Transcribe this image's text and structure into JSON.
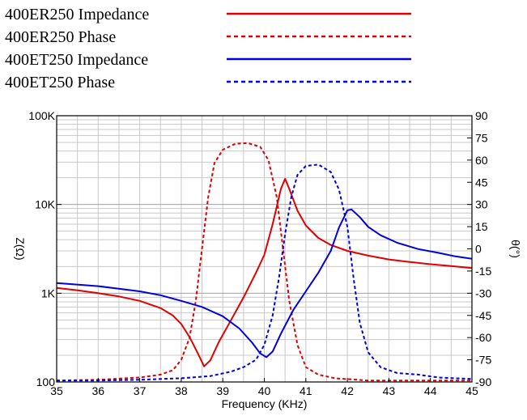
{
  "chart_data": {
    "type": "line",
    "xlabel": "Frequency (KHz)",
    "ylabel_left": "Z(Ω)",
    "ylabel_right": "θ(°)",
    "x_ticks": [
      35,
      36,
      37,
      38,
      39,
      40,
      41,
      42,
      43,
      44,
      45
    ],
    "x_tick_labels": [
      "35",
      "36",
      "37",
      "38",
      "39",
      "40",
      "41",
      "42",
      "43",
      "44",
      "45"
    ],
    "y_left_scale": "log",
    "y_left_ticks": [
      100,
      1000,
      10000,
      100000
    ],
    "y_left_tick_labels": [
      "100",
      "1K",
      "10K",
      "100K"
    ],
    "y_right_ticks": [
      90,
      75,
      60,
      45,
      30,
      15,
      0,
      -15,
      -30,
      -45,
      -60,
      -75,
      -90
    ],
    "y_right_tick_labels": [
      "90",
      "75",
      "60",
      "45",
      "30",
      "15",
      "0",
      "-15",
      "-30",
      "-45",
      "-60",
      "-75",
      "-90"
    ],
    "xlim": [
      35,
      45
    ],
    "ylim_left": [
      100,
      100000
    ],
    "ylim_right": [
      -90,
      90
    ],
    "grid": true,
    "legend_position": "top",
    "series": [
      {
        "name": "400ER250 Impedance",
        "axis": "left",
        "color": "#e00000",
        "dash": "solid",
        "points": [
          [
            35,
            1150
          ],
          [
            35.5,
            1080
          ],
          [
            36,
            1000
          ],
          [
            36.5,
            920
          ],
          [
            37,
            820
          ],
          [
            37.5,
            680
          ],
          [
            37.8,
            560
          ],
          [
            38,
            450
          ],
          [
            38.2,
            320
          ],
          [
            38.4,
            210
          ],
          [
            38.55,
            150
          ],
          [
            38.7,
            175
          ],
          [
            38.9,
            280
          ],
          [
            39.2,
            500
          ],
          [
            39.5,
            900
          ],
          [
            39.8,
            1700
          ],
          [
            40,
            2700
          ],
          [
            40.2,
            6000
          ],
          [
            40.4,
            15000
          ],
          [
            40.5,
            19500
          ],
          [
            40.6,
            15000
          ],
          [
            40.8,
            8500
          ],
          [
            41,
            5800
          ],
          [
            41.3,
            4200
          ],
          [
            41.6,
            3500
          ],
          [
            42,
            3000
          ],
          [
            42.5,
            2650
          ],
          [
            43,
            2400
          ],
          [
            43.5,
            2250
          ],
          [
            44,
            2120
          ],
          [
            44.5,
            2020
          ],
          [
            45,
            1920
          ]
        ]
      },
      {
        "name": "400ER250 Phase",
        "axis": "right",
        "color": "#e00000",
        "dash": "dashed",
        "points": [
          [
            35,
            -89
          ],
          [
            36,
            -88.5
          ],
          [
            37,
            -87
          ],
          [
            37.5,
            -85
          ],
          [
            37.8,
            -82
          ],
          [
            38,
            -75
          ],
          [
            38.2,
            -60
          ],
          [
            38.35,
            -35
          ],
          [
            38.5,
            0
          ],
          [
            38.65,
            35
          ],
          [
            38.8,
            58
          ],
          [
            39,
            67
          ],
          [
            39.3,
            71
          ],
          [
            39.6,
            71.5
          ],
          [
            39.9,
            69
          ],
          [
            40.1,
            60
          ],
          [
            40.3,
            35
          ],
          [
            40.45,
            0
          ],
          [
            40.6,
            -35
          ],
          [
            40.8,
            -65
          ],
          [
            41,
            -80
          ],
          [
            41.3,
            -85
          ],
          [
            41.7,
            -87.5
          ],
          [
            42.5,
            -89
          ],
          [
            45,
            -89
          ]
        ]
      },
      {
        "name": "400ET250 Impedance",
        "axis": "left",
        "color": "#0000e0",
        "dash": "solid",
        "points": [
          [
            35,
            1300
          ],
          [
            36,
            1200
          ],
          [
            37,
            1050
          ],
          [
            37.5,
            950
          ],
          [
            38,
            820
          ],
          [
            38.5,
            700
          ],
          [
            39,
            550
          ],
          [
            39.4,
            400
          ],
          [
            39.7,
            280
          ],
          [
            39.9,
            210
          ],
          [
            40.05,
            190
          ],
          [
            40.2,
            220
          ],
          [
            40.4,
            350
          ],
          [
            40.7,
            650
          ],
          [
            41,
            1050
          ],
          [
            41.3,
            1700
          ],
          [
            41.6,
            3000
          ],
          [
            41.8,
            5500
          ],
          [
            42,
            8600
          ],
          [
            42.1,
            8800
          ],
          [
            42.3,
            7200
          ],
          [
            42.5,
            5600
          ],
          [
            42.8,
            4500
          ],
          [
            43.2,
            3700
          ],
          [
            43.7,
            3150
          ],
          [
            44.2,
            2850
          ],
          [
            44.6,
            2600
          ],
          [
            45,
            2450
          ]
        ]
      },
      {
        "name": "400ET250 Phase",
        "axis": "right",
        "color": "#0000e0",
        "dash": "dashed",
        "points": [
          [
            35,
            -89
          ],
          [
            36,
            -89
          ],
          [
            37,
            -88.5
          ],
          [
            38,
            -87.5
          ],
          [
            38.7,
            -86
          ],
          [
            39.2,
            -83
          ],
          [
            39.5,
            -80
          ],
          [
            39.8,
            -75
          ],
          [
            40,
            -65
          ],
          [
            40.2,
            -45
          ],
          [
            40.35,
            -20
          ],
          [
            40.5,
            10
          ],
          [
            40.65,
            35
          ],
          [
            40.8,
            50
          ],
          [
            41,
            56
          ],
          [
            41.3,
            57
          ],
          [
            41.6,
            52
          ],
          [
            41.8,
            40
          ],
          [
            42,
            15
          ],
          [
            42.15,
            -20
          ],
          [
            42.3,
            -50
          ],
          [
            42.5,
            -70
          ],
          [
            42.8,
            -80
          ],
          [
            43.2,
            -84
          ],
          [
            43.7,
            -85
          ],
          [
            44.2,
            -87
          ],
          [
            45,
            -88
          ]
        ]
      }
    ]
  }
}
